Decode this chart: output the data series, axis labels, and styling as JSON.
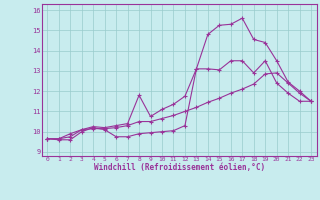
{
  "xlabel": "Windchill (Refroidissement éolien,°C)",
  "xlim": [
    -0.5,
    23.5
  ],
  "ylim": [
    8.8,
    16.3
  ],
  "xticks": [
    0,
    1,
    2,
    3,
    4,
    5,
    6,
    7,
    8,
    9,
    10,
    11,
    12,
    13,
    14,
    15,
    16,
    17,
    18,
    19,
    20,
    21,
    22,
    23
  ],
  "yticks": [
    9,
    10,
    11,
    12,
    13,
    14,
    15,
    16
  ],
  "bg_color": "#c8ecee",
  "grid_color": "#99cccc",
  "line_color": "#993399",
  "line1_x": [
    0,
    1,
    2,
    3,
    4,
    5,
    6,
    7,
    8,
    9,
    10,
    11,
    12,
    13,
    14,
    15,
    16,
    17,
    18,
    19,
    20,
    21,
    22,
    23
  ],
  "line1_y": [
    9.65,
    9.6,
    9.6,
    10.0,
    10.2,
    10.1,
    9.75,
    9.75,
    9.9,
    9.95,
    10.0,
    10.05,
    10.3,
    13.1,
    13.1,
    13.05,
    13.5,
    13.5,
    12.9,
    13.5,
    12.4,
    11.9,
    11.5,
    11.5
  ],
  "line2_x": [
    0,
    1,
    2,
    3,
    4,
    5,
    6,
    7,
    8,
    9,
    10,
    11,
    12,
    13,
    14,
    15,
    16,
    17,
    18,
    19,
    20,
    21,
    22,
    23
  ],
  "line2_y": [
    9.65,
    9.65,
    9.9,
    10.1,
    10.15,
    10.15,
    10.2,
    10.3,
    10.5,
    10.5,
    10.65,
    10.8,
    11.0,
    11.2,
    11.45,
    11.65,
    11.9,
    12.1,
    12.35,
    12.85,
    12.9,
    12.4,
    11.9,
    11.5
  ],
  "line3_x": [
    0,
    1,
    2,
    3,
    4,
    5,
    6,
    7,
    8,
    9,
    10,
    11,
    12,
    13,
    14,
    15,
    16,
    17,
    18,
    19,
    20,
    21,
    22,
    23
  ],
  "line3_y": [
    9.65,
    9.65,
    9.75,
    10.1,
    10.25,
    10.2,
    10.3,
    10.4,
    11.8,
    10.75,
    11.1,
    11.35,
    11.75,
    13.1,
    14.8,
    15.25,
    15.3,
    15.6,
    14.55,
    14.4,
    13.5,
    12.45,
    12.0,
    11.5
  ]
}
